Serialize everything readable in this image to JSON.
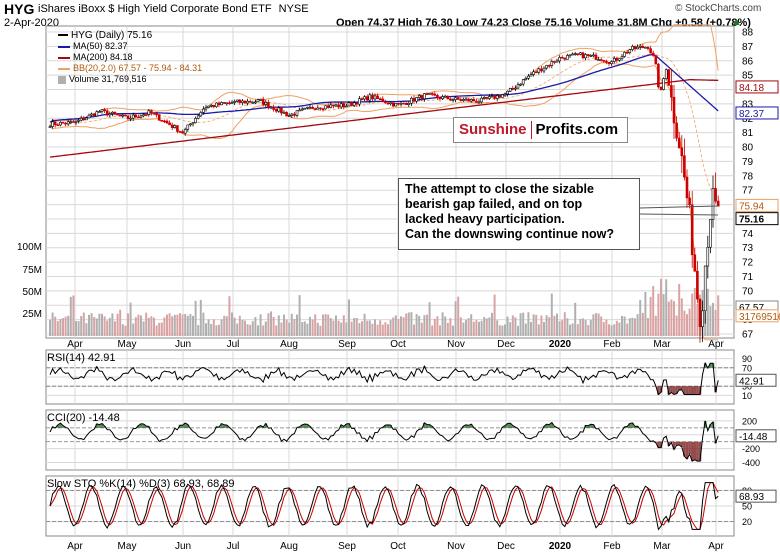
{
  "header": {
    "ticker": "HYG",
    "name": "iShares iBoxx $ High Yield Corporate Bond ETF",
    "exchange": "NYSE",
    "date": "2-Apr-2020",
    "ohlc_line": "Open 74.37  High 76.30  Low 74.23  Close 75.16  Volume 31.8M  Chg +0.58 (+0.78%)",
    "chg_marker": "▲",
    "credit": "© StockCharts.com"
  },
  "legend": {
    "main": "HYG (Daily) 75.16",
    "ma50": "MA(50) 82.37",
    "ma200": "MA(200) 84.18",
    "bb": "BB(20,2.0) 67.57 - 75.94 - 84.31",
    "volume": "Volume 31,769,516"
  },
  "colors": {
    "up": "#000000",
    "down": "#cc0000",
    "ma50": "#1a1aa8",
    "ma200": "#a30a10",
    "bb": "#f0a060",
    "volume_bar": "#b0b0b0",
    "osc_fill_up": "#2e6b2e",
    "osc_fill_down": "#7a2020",
    "grid": "#d8d8d8"
  },
  "annotation": {
    "line1": "The attempt to close the sizable",
    "line2": "bearish gap failed, and on top",
    "line3": "lacked heavy participation.",
    "line4": "Can the downswing continue now?"
  },
  "brand": {
    "part1": "Sunshine",
    "part2": "Profits.com"
  },
  "chart_data": [
    {
      "type": "candlestick",
      "title": "HYG iShares iBoxx $ High Yield Corporate Bond ETF NYSE",
      "x_months": [
        "Apr",
        "May",
        "Jun",
        "Jul",
        "Aug",
        "Sep",
        "Oct",
        "Nov",
        "Dec",
        "2020",
        "Feb",
        "Mar",
        "Apr"
      ],
      "y_ticks": [
        67,
        68,
        69,
        70,
        71,
        72,
        73,
        74,
        75,
        76,
        77,
        78,
        79,
        80,
        81,
        82,
        83,
        84,
        85,
        86,
        87,
        88
      ],
      "ylim": [
        67,
        88
      ],
      "volume_ticks": [
        "25M",
        "50M",
        "75M",
        "100M"
      ],
      "last_price_labels": [
        "84.18",
        "82.37",
        "75.94",
        "75.16",
        "67.57",
        "31769516"
      ],
      "close_series": [
        {
          "date": "Apr 2019",
          "value": 81.6
        },
        {
          "date": "May 2019",
          "value": 81.8
        },
        {
          "date": "Jun 2019",
          "value": 81.2
        },
        {
          "date": "Jul 2019",
          "value": 82.6
        },
        {
          "date": "Aug 2019",
          "value": 82.3
        },
        {
          "date": "Sep 2019",
          "value": 82.9
        },
        {
          "date": "Oct 2019",
          "value": 83.1
        },
        {
          "date": "Nov 2019",
          "value": 83.4
        },
        {
          "date": "Dec 2019",
          "value": 84.0
        },
        {
          "date": "Jan 2020",
          "value": 85.8
        },
        {
          "date": "Feb 2020",
          "value": 86.4
        },
        {
          "date": "Feb 2020 late",
          "value": 86.8
        },
        {
          "date": "Mar 2020",
          "value": 83.0
        },
        {
          "date": "Mar 2020 low",
          "value": 68.0
        },
        {
          "date": "Apr 2020",
          "value": 75.16
        }
      ],
      "ma50_last": 82.37,
      "ma200_last": 84.18,
      "bb_values": [
        67.57,
        75.94,
        84.31
      ]
    },
    {
      "type": "line",
      "title": "RSI(14) 42.91",
      "y_ticks": [
        10,
        30,
        50,
        70,
        90
      ],
      "last_value": 42.91
    },
    {
      "type": "line",
      "title": "CCI(20) -14.48",
      "y_ticks": [
        -400,
        -200,
        0,
        200
      ],
      "last_value": -14.48
    },
    {
      "type": "line",
      "title": "Slow STO %K(14) %D(3) 68.93, 68.89",
      "series": [
        {
          "name": "%K(14)",
          "last": 68.93
        },
        {
          "name": "%D(3)",
          "last": 68.89
        }
      ],
      "y_ticks": [
        20,
        50,
        80
      ],
      "last_value": 68.93
    }
  ]
}
